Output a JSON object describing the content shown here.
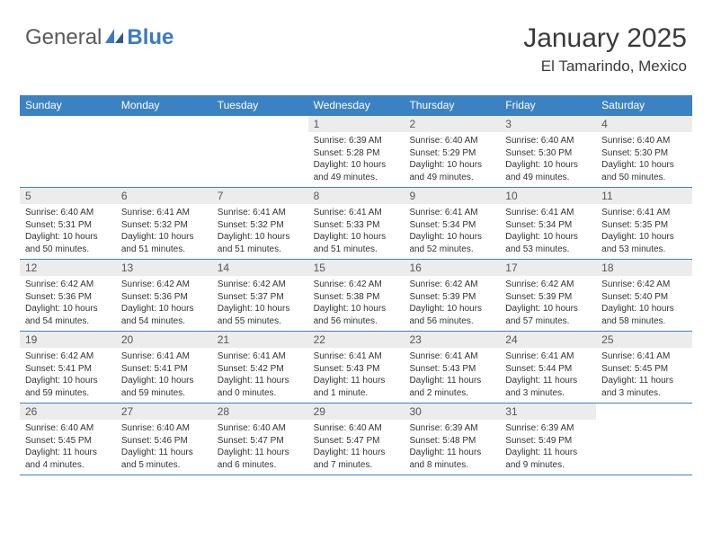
{
  "brand": {
    "part1": "General",
    "part2": "Blue"
  },
  "title": "January 2025",
  "location": "El Tamarindo, Mexico",
  "colors": {
    "header_bg": "#3b82c4",
    "header_text": "#ffffff",
    "daynum_bg": "#ececec",
    "border": "#3b82c4",
    "text": "#333333",
    "brand_gray": "#5a5a5a",
    "brand_blue": "#3b7bbf"
  },
  "weekdays": [
    "Sunday",
    "Monday",
    "Tuesday",
    "Wednesday",
    "Thursday",
    "Friday",
    "Saturday"
  ],
  "weeks": [
    [
      {
        "n": "",
        "sunrise": "",
        "sunset": "",
        "daylight": "",
        "blank": true
      },
      {
        "n": "",
        "sunrise": "",
        "sunset": "",
        "daylight": "",
        "blank": true
      },
      {
        "n": "",
        "sunrise": "",
        "sunset": "",
        "daylight": "",
        "blank": true
      },
      {
        "n": "1",
        "sunrise": "Sunrise: 6:39 AM",
        "sunset": "Sunset: 5:28 PM",
        "daylight": "Daylight: 10 hours and 49 minutes."
      },
      {
        "n": "2",
        "sunrise": "Sunrise: 6:40 AM",
        "sunset": "Sunset: 5:29 PM",
        "daylight": "Daylight: 10 hours and 49 minutes."
      },
      {
        "n": "3",
        "sunrise": "Sunrise: 6:40 AM",
        "sunset": "Sunset: 5:30 PM",
        "daylight": "Daylight: 10 hours and 49 minutes."
      },
      {
        "n": "4",
        "sunrise": "Sunrise: 6:40 AM",
        "sunset": "Sunset: 5:30 PM",
        "daylight": "Daylight: 10 hours and 50 minutes."
      }
    ],
    [
      {
        "n": "5",
        "sunrise": "Sunrise: 6:40 AM",
        "sunset": "Sunset: 5:31 PM",
        "daylight": "Daylight: 10 hours and 50 minutes."
      },
      {
        "n": "6",
        "sunrise": "Sunrise: 6:41 AM",
        "sunset": "Sunset: 5:32 PM",
        "daylight": "Daylight: 10 hours and 51 minutes."
      },
      {
        "n": "7",
        "sunrise": "Sunrise: 6:41 AM",
        "sunset": "Sunset: 5:32 PM",
        "daylight": "Daylight: 10 hours and 51 minutes."
      },
      {
        "n": "8",
        "sunrise": "Sunrise: 6:41 AM",
        "sunset": "Sunset: 5:33 PM",
        "daylight": "Daylight: 10 hours and 51 minutes."
      },
      {
        "n": "9",
        "sunrise": "Sunrise: 6:41 AM",
        "sunset": "Sunset: 5:34 PM",
        "daylight": "Daylight: 10 hours and 52 minutes."
      },
      {
        "n": "10",
        "sunrise": "Sunrise: 6:41 AM",
        "sunset": "Sunset: 5:34 PM",
        "daylight": "Daylight: 10 hours and 53 minutes."
      },
      {
        "n": "11",
        "sunrise": "Sunrise: 6:41 AM",
        "sunset": "Sunset: 5:35 PM",
        "daylight": "Daylight: 10 hours and 53 minutes."
      }
    ],
    [
      {
        "n": "12",
        "sunrise": "Sunrise: 6:42 AM",
        "sunset": "Sunset: 5:36 PM",
        "daylight": "Daylight: 10 hours and 54 minutes."
      },
      {
        "n": "13",
        "sunrise": "Sunrise: 6:42 AM",
        "sunset": "Sunset: 5:36 PM",
        "daylight": "Daylight: 10 hours and 54 minutes."
      },
      {
        "n": "14",
        "sunrise": "Sunrise: 6:42 AM",
        "sunset": "Sunset: 5:37 PM",
        "daylight": "Daylight: 10 hours and 55 minutes."
      },
      {
        "n": "15",
        "sunrise": "Sunrise: 6:42 AM",
        "sunset": "Sunset: 5:38 PM",
        "daylight": "Daylight: 10 hours and 56 minutes."
      },
      {
        "n": "16",
        "sunrise": "Sunrise: 6:42 AM",
        "sunset": "Sunset: 5:39 PM",
        "daylight": "Daylight: 10 hours and 56 minutes."
      },
      {
        "n": "17",
        "sunrise": "Sunrise: 6:42 AM",
        "sunset": "Sunset: 5:39 PM",
        "daylight": "Daylight: 10 hours and 57 minutes."
      },
      {
        "n": "18",
        "sunrise": "Sunrise: 6:42 AM",
        "sunset": "Sunset: 5:40 PM",
        "daylight": "Daylight: 10 hours and 58 minutes."
      }
    ],
    [
      {
        "n": "19",
        "sunrise": "Sunrise: 6:42 AM",
        "sunset": "Sunset: 5:41 PM",
        "daylight": "Daylight: 10 hours and 59 minutes."
      },
      {
        "n": "20",
        "sunrise": "Sunrise: 6:41 AM",
        "sunset": "Sunset: 5:41 PM",
        "daylight": "Daylight: 10 hours and 59 minutes."
      },
      {
        "n": "21",
        "sunrise": "Sunrise: 6:41 AM",
        "sunset": "Sunset: 5:42 PM",
        "daylight": "Daylight: 11 hours and 0 minutes."
      },
      {
        "n": "22",
        "sunrise": "Sunrise: 6:41 AM",
        "sunset": "Sunset: 5:43 PM",
        "daylight": "Daylight: 11 hours and 1 minute."
      },
      {
        "n": "23",
        "sunrise": "Sunrise: 6:41 AM",
        "sunset": "Sunset: 5:43 PM",
        "daylight": "Daylight: 11 hours and 2 minutes."
      },
      {
        "n": "24",
        "sunrise": "Sunrise: 6:41 AM",
        "sunset": "Sunset: 5:44 PM",
        "daylight": "Daylight: 11 hours and 3 minutes."
      },
      {
        "n": "25",
        "sunrise": "Sunrise: 6:41 AM",
        "sunset": "Sunset: 5:45 PM",
        "daylight": "Daylight: 11 hours and 3 minutes."
      }
    ],
    [
      {
        "n": "26",
        "sunrise": "Sunrise: 6:40 AM",
        "sunset": "Sunset: 5:45 PM",
        "daylight": "Daylight: 11 hours and 4 minutes."
      },
      {
        "n": "27",
        "sunrise": "Sunrise: 6:40 AM",
        "sunset": "Sunset: 5:46 PM",
        "daylight": "Daylight: 11 hours and 5 minutes."
      },
      {
        "n": "28",
        "sunrise": "Sunrise: 6:40 AM",
        "sunset": "Sunset: 5:47 PM",
        "daylight": "Daylight: 11 hours and 6 minutes."
      },
      {
        "n": "29",
        "sunrise": "Sunrise: 6:40 AM",
        "sunset": "Sunset: 5:47 PM",
        "daylight": "Daylight: 11 hours and 7 minutes."
      },
      {
        "n": "30",
        "sunrise": "Sunrise: 6:39 AM",
        "sunset": "Sunset: 5:48 PM",
        "daylight": "Daylight: 11 hours and 8 minutes."
      },
      {
        "n": "31",
        "sunrise": "Sunrise: 6:39 AM",
        "sunset": "Sunset: 5:49 PM",
        "daylight": "Daylight: 11 hours and 9 minutes."
      },
      {
        "n": "",
        "sunrise": "",
        "sunset": "",
        "daylight": "",
        "blank": true
      }
    ]
  ]
}
